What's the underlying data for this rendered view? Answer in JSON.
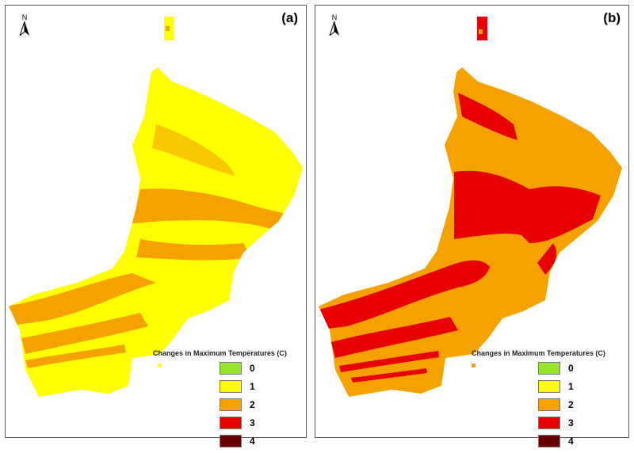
{
  "legend": {
    "title": "Changes in Maximum Temperatures (C)",
    "classes": [
      {
        "value": "0",
        "color": "#99e629"
      },
      {
        "value": "1",
        "color": "#ffff00"
      },
      {
        "value": "2",
        "color": "#f5a200"
      },
      {
        "value": "3",
        "color": "#e60000"
      },
      {
        "value": "4",
        "color": "#6b0000"
      }
    ]
  },
  "north_arrow": {
    "letter": "N",
    "icon": "north-arrow-icon"
  },
  "panels": [
    {
      "label": "(a)",
      "base_class": "1",
      "bands_class": "2"
    },
    {
      "label": "(b)",
      "base_class": "2",
      "bands_class": "3"
    }
  ]
}
